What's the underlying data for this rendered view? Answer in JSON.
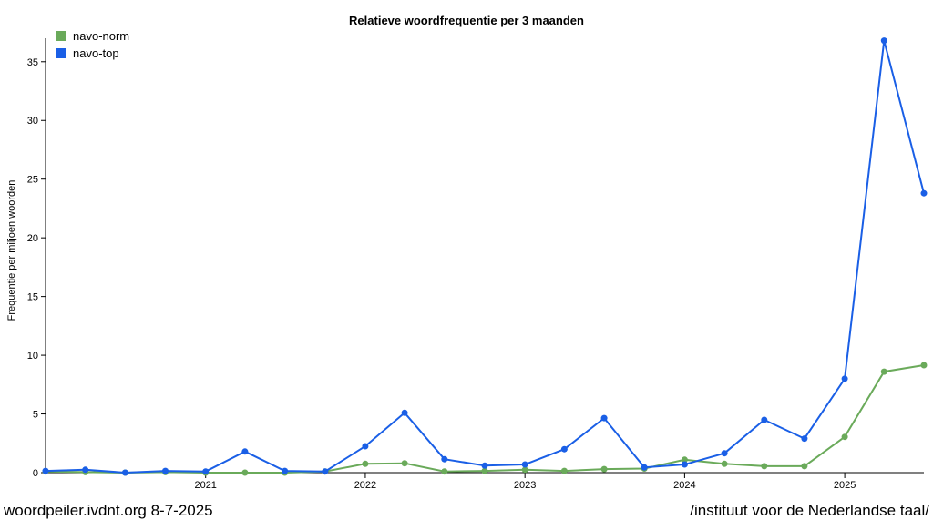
{
  "footer": {
    "left": "woordpeiler.ivdnt.org 8-7-2025",
    "right": "/instituut voor de Nederlandse taal/"
  },
  "chart_data": {
    "type": "line",
    "title": "Relatieve woordfrequentie per 3 maanden",
    "xlabel": "",
    "ylabel": "Frequentie per miljoen woorden",
    "x": [
      "2020-01-01",
      "2020-04-01",
      "2020-07-01",
      "2020-10-01",
      "2021-01-01",
      "2021-04-01",
      "2021-07-01",
      "2021-10-01",
      "2022-01-01",
      "2022-04-01",
      "2022-07-01",
      "2022-10-01",
      "2023-01-01",
      "2023-04-01",
      "2023-07-01",
      "2023-10-01",
      "2024-01-01",
      "2024-04-01",
      "2024-07-01",
      "2024-10-01",
      "2025-01-01",
      "2025-04-01",
      "2025-07-01"
    ],
    "x_ticks": [
      "2021",
      "2022",
      "2023",
      "2024",
      "2025"
    ],
    "y_ticks": [
      0,
      5,
      10,
      15,
      20,
      25,
      30,
      35
    ],
    "ylim": [
      0,
      37
    ],
    "legend_position": "top-left",
    "grid": false,
    "series": [
      {
        "name": "navo-norm",
        "color": "#6aaa5a",
        "values": [
          0.1,
          0.05,
          0.0,
          0.05,
          0.0,
          0.0,
          0.0,
          0.1,
          0.75,
          0.8,
          0.1,
          0.15,
          0.25,
          0.15,
          0.3,
          0.35,
          1.1,
          0.75,
          0.55,
          0.55,
          3.05,
          8.6,
          9.15
        ]
      },
      {
        "name": "navo-top",
        "color": "#1a5fe6",
        "values": [
          0.15,
          0.25,
          0.0,
          0.15,
          0.1,
          1.8,
          0.15,
          0.1,
          2.25,
          5.1,
          1.15,
          0.6,
          0.7,
          2.0,
          4.65,
          0.45,
          0.7,
          1.65,
          4.5,
          2.9,
          8.0,
          36.8,
          23.8
        ]
      }
    ]
  }
}
